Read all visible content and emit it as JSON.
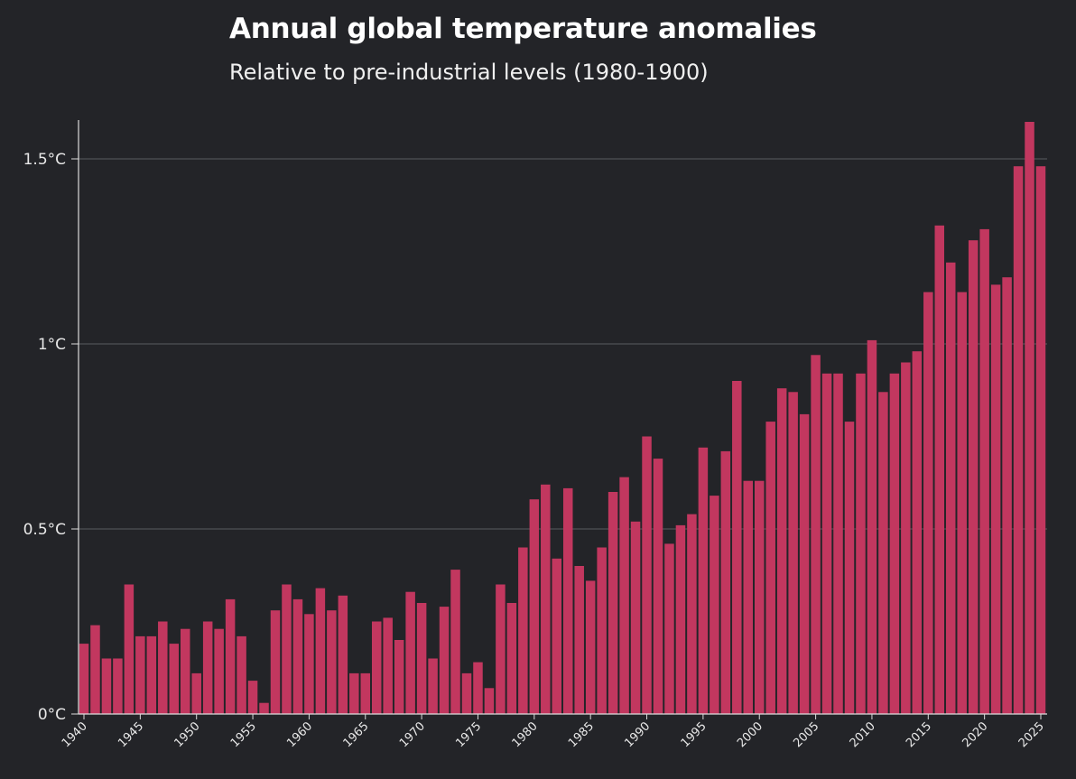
{
  "chart_data": {
    "type": "bar",
    "title": "Annual global temperature anomalies",
    "subtitle": "Relative to pre-industrial levels (1980-1900)",
    "xlabel": "",
    "ylabel": "",
    "ylim": [
      0,
      1.6
    ],
    "yticks": [
      {
        "value": 0,
        "label": "0°C"
      },
      {
        "value": 0.5,
        "label": "0.5°C"
      },
      {
        "value": 1,
        "label": "1°C"
      },
      {
        "value": 1.5,
        "label": "1.5°C"
      }
    ],
    "xtick_labels": [
      "1940",
      "1945",
      "1950",
      "1955",
      "1960",
      "1965",
      "1970",
      "1975",
      "1980",
      "1985",
      "1990",
      "1995",
      "2000",
      "2005",
      "2010",
      "2015",
      "2020",
      "2025"
    ],
    "grid": "horizontal",
    "bar_color": "#c2375f",
    "background": "#232428",
    "categories": [
      1940,
      1941,
      1942,
      1943,
      1944,
      1945,
      1946,
      1947,
      1948,
      1949,
      1950,
      1951,
      1952,
      1953,
      1954,
      1955,
      1956,
      1957,
      1958,
      1959,
      1960,
      1961,
      1962,
      1963,
      1964,
      1965,
      1966,
      1967,
      1968,
      1969,
      1970,
      1971,
      1972,
      1973,
      1974,
      1975,
      1976,
      1977,
      1978,
      1979,
      1980,
      1981,
      1982,
      1983,
      1984,
      1985,
      1986,
      1987,
      1988,
      1989,
      1990,
      1991,
      1992,
      1993,
      1994,
      1995,
      1996,
      1997,
      1998,
      1999,
      2000,
      2001,
      2002,
      2003,
      2004,
      2005,
      2006,
      2007,
      2008,
      2009,
      2010,
      2011,
      2012,
      2013,
      2014,
      2015,
      2016,
      2017,
      2018,
      2019,
      2020,
      2021,
      2022,
      2023,
      2024,
      2025
    ],
    "values": [
      0.19,
      0.24,
      0.15,
      0.15,
      0.35,
      0.21,
      0.21,
      0.25,
      0.19,
      0.23,
      0.11,
      0.25,
      0.23,
      0.31,
      0.21,
      0.09,
      0.03,
      0.28,
      0.35,
      0.31,
      0.27,
      0.34,
      0.28,
      0.32,
      0.11,
      0.11,
      0.25,
      0.26,
      0.2,
      0.33,
      0.3,
      0.15,
      0.29,
      0.39,
      0.11,
      0.14,
      0.07,
      0.35,
      0.3,
      0.45,
      0.58,
      0.62,
      0.42,
      0.61,
      0.4,
      0.36,
      0.45,
      0.6,
      0.64,
      0.52,
      0.75,
      0.69,
      0.46,
      0.51,
      0.54,
      0.72,
      0.59,
      0.71,
      0.9,
      0.63,
      0.63,
      0.79,
      0.88,
      0.87,
      0.81,
      0.97,
      0.92,
      0.92,
      0.79,
      0.92,
      1.01,
      0.87,
      0.92,
      0.95,
      0.98,
      1.14,
      1.32,
      1.22,
      1.14,
      1.28,
      1.31,
      1.16,
      1.18,
      1.48,
      1.6,
      1.48
    ]
  }
}
